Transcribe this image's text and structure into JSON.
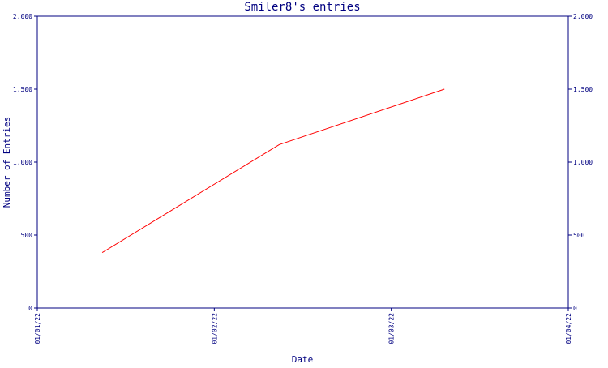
{
  "chart_data": {
    "type": "line",
    "title": "Smiler8's entries",
    "xlabel": "Date",
    "ylabel": "Number of Entries",
    "x_ticks": [
      "01/01/22",
      "01/02/22",
      "01/03/22",
      "01/04/22"
    ],
    "y_ticks": [
      "0",
      "500",
      "1,000",
      "1,500",
      "2,000"
    ],
    "ylim": [
      0,
      2000
    ],
    "xlim": [
      "2022-01-01",
      "2022-04-01"
    ],
    "series": [
      {
        "color": "#ff0000",
        "points": [
          {
            "x": "2022-01-12",
            "y": 380
          },
          {
            "x": "2022-02-11",
            "y": 1120
          },
          {
            "x": "2022-03-11",
            "y": 1500
          }
        ]
      }
    ],
    "grid": false,
    "axis_color": "#000080"
  }
}
